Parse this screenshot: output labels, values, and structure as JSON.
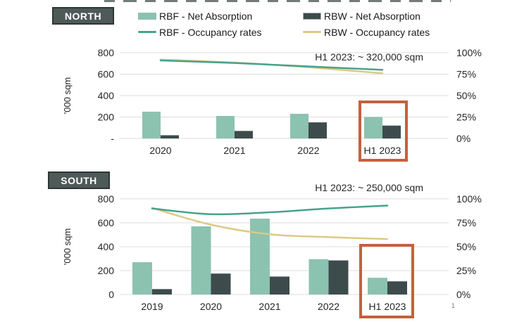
{
  "slide": {
    "page_number": "1"
  },
  "region_labels": {
    "north": "NORTH",
    "south": "SOUTH"
  },
  "legend": {
    "items": [
      {
        "id": "rbf-net-absorption",
        "label": "RBF - Net Absorption",
        "marker": "swatch",
        "color": "#8cc2b0"
      },
      {
        "id": "rbw-net-absorption",
        "label": "RBW - Net Absorption",
        "marker": "swatch",
        "color": "#3d4b4c"
      },
      {
        "id": "rbf-occupancy-rates",
        "label": "RBF - Occupancy rates",
        "marker": "line",
        "color": "#46a38b"
      },
      {
        "id": "rbw-occupancy-rates",
        "label": "RBW - Occupancy rates",
        "marker": "line",
        "color": "#dcca83"
      }
    ]
  },
  "colors": {
    "rbf_bar": "#8cc2b0",
    "rbw_bar": "#3d4b4c",
    "rbf_line": "#46a38b",
    "rbw_line": "#dcca83",
    "highlight_box": "#c4613c",
    "gridline": "#dcdcdc",
    "axis_text": "#262626",
    "annotation_text": "#404040",
    "region_label_bg": "#4e5a57"
  },
  "chart_data": [
    {
      "id": "north",
      "type": "bar",
      "subtype": "combo bar+line, dual axis",
      "region": "NORTH",
      "categories": [
        "2020",
        "2021",
        "2022",
        "H1 2023"
      ],
      "ylabel": "'000 sqm",
      "left_axis": {
        "ticks": [
          "800",
          "600",
          "400",
          "200",
          "-"
        ],
        "lim": [
          0,
          800
        ]
      },
      "right_axis": {
        "ticks": [
          "100%",
          "75%",
          "50%",
          "25%",
          "0%"
        ],
        "lim": [
          0,
          100
        ]
      },
      "grid": true,
      "legend_position": "top",
      "annotation": "H1 2023: ~ 320,000 sqm",
      "highlighted_category": "H1 2023",
      "series": [
        {
          "name": "RBF - Net Absorption",
          "kind": "bar",
          "axis": "left",
          "values": [
            250,
            210,
            230,
            200
          ]
        },
        {
          "name": "RBW - Net Absorption",
          "kind": "bar",
          "axis": "left",
          "values": [
            30,
            70,
            150,
            120
          ]
        },
        {
          "name": "RBF - Occupancy rates",
          "kind": "line",
          "axis": "right",
          "values": [
            91,
            88,
            84,
            80
          ]
        },
        {
          "name": "RBW - Occupancy rates",
          "kind": "line",
          "axis": "right",
          "values": [
            92,
            88.5,
            83,
            76
          ]
        }
      ]
    },
    {
      "id": "south",
      "type": "bar",
      "subtype": "combo bar+line, dual axis",
      "region": "SOUTH",
      "categories": [
        "2019",
        "2020",
        "2021",
        "2022",
        "H1 2023"
      ],
      "ylabel": "'000 sqm",
      "left_axis": {
        "ticks": [
          "800",
          "600",
          "400",
          "200",
          "0"
        ],
        "lim": [
          0,
          800
        ]
      },
      "right_axis": {
        "ticks": [
          "100%",
          "75%",
          "50%",
          "25%",
          "0%"
        ],
        "lim": [
          0,
          100
        ]
      },
      "grid": true,
      "legend_position": "top",
      "annotation": "H1 2023: ~ 250,000 sqm",
      "highlighted_category": "H1 2023",
      "series": [
        {
          "name": "RBF - Net Absorption",
          "kind": "bar",
          "axis": "left",
          "values": [
            270,
            570,
            635,
            295,
            140
          ]
        },
        {
          "name": "RBW - Net Absorption",
          "kind": "bar",
          "axis": "left",
          "values": [
            45,
            175,
            150,
            285,
            110
          ]
        },
        {
          "name": "RBF - Occupancy rates",
          "kind": "line",
          "axis": "right",
          "values": [
            90,
            84,
            86,
            90,
            93
          ]
        },
        {
          "name": "RBW - Occupancy rates",
          "kind": "line",
          "axis": "right",
          "values": [
            90.5,
            73,
            63,
            60,
            58
          ]
        }
      ]
    }
  ]
}
